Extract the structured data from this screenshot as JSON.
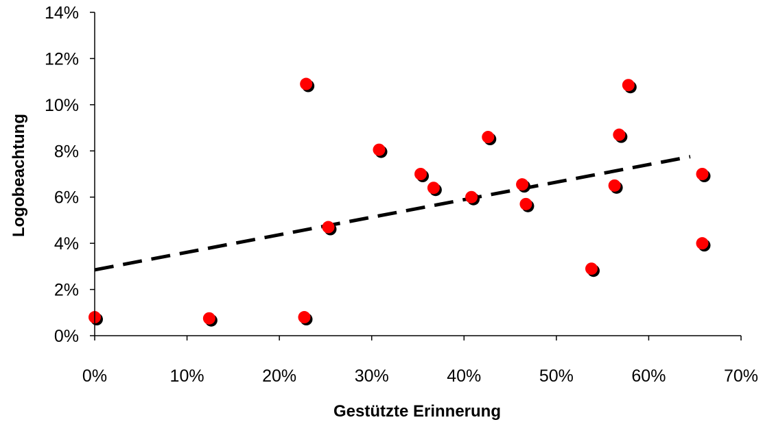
{
  "chart_data": {
    "type": "scatter",
    "xlabel": "Gestützte Erinnerung",
    "ylabel": "Logobeachtung",
    "xlim": [
      0,
      70
    ],
    "ylim": [
      0,
      14
    ],
    "x_ticks": [
      0,
      10,
      20,
      30,
      40,
      50,
      60,
      70
    ],
    "y_ticks": [
      0,
      2,
      4,
      6,
      8,
      10,
      12,
      14
    ],
    "x_tick_labels": [
      "0%",
      "10%",
      "20%",
      "30%",
      "40%",
      "50%",
      "60%",
      "70%"
    ],
    "y_tick_labels": [
      "0%",
      "2%",
      "4%",
      "6%",
      "8%",
      "10%",
      "12%",
      "14%"
    ],
    "grid": false,
    "marker_color": "#ff0000",
    "points": [
      {
        "x": 0.0,
        "y": 0.8
      },
      {
        "x": 12.4,
        "y": 0.75
      },
      {
        "x": 22.7,
        "y": 0.8
      },
      {
        "x": 22.9,
        "y": 10.9
      },
      {
        "x": 25.3,
        "y": 4.7
      },
      {
        "x": 30.8,
        "y": 8.05
      },
      {
        "x": 35.3,
        "y": 7.0
      },
      {
        "x": 36.7,
        "y": 6.4
      },
      {
        "x": 40.8,
        "y": 6.0
      },
      {
        "x": 42.6,
        "y": 8.6
      },
      {
        "x": 46.3,
        "y": 6.55
      },
      {
        "x": 46.7,
        "y": 5.7
      },
      {
        "x": 53.8,
        "y": 2.9
      },
      {
        "x": 56.3,
        "y": 6.5
      },
      {
        "x": 56.8,
        "y": 8.7
      },
      {
        "x": 57.8,
        "y": 10.85
      },
      {
        "x": 65.8,
        "y": 7.0
      },
      {
        "x": 65.8,
        "y": 4.0
      }
    ],
    "trendline": {
      "style": "dashed",
      "color": "#000000",
      "x": [
        0,
        64.5
      ],
      "y": [
        2.85,
        7.75
      ]
    }
  }
}
